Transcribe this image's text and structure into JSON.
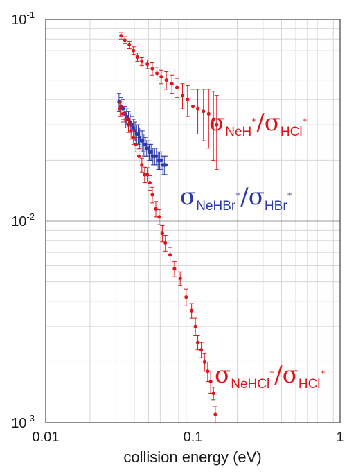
{
  "chart_data": {
    "type": "scatter",
    "xlabel": "collision energy (eV)",
    "x_scale": "log",
    "y_scale": "log",
    "xlim": [
      0.01,
      1
    ],
    "ylim": [
      0.001,
      0.1
    ],
    "grid": true,
    "x_ticks": [
      {
        "value": 0.01,
        "label": "0.01"
      },
      {
        "value": 0.1,
        "label": "0.1"
      },
      {
        "value": 1,
        "label": "1"
      }
    ],
    "y_ticks": [
      {
        "value": 0.1,
        "mant": "10",
        "exp": "-1"
      },
      {
        "value": 0.01,
        "mant": "10",
        "exp": "-2"
      },
      {
        "value": 0.001,
        "mant": "10",
        "exp": "-3"
      }
    ],
    "series": [
      {
        "color": "#e0141b",
        "label_parts": [
          "σ",
          "NeH",
          "+",
          "/σ",
          "HCl",
          "+"
        ],
        "x": [
          0.0325,
          0.0345,
          0.037,
          0.0395,
          0.042,
          0.045,
          0.049,
          0.053,
          0.057,
          0.061,
          0.066,
          0.072,
          0.078,
          0.085,
          0.092,
          0.1,
          0.108,
          0.118,
          0.128,
          0.138,
          0.145
        ],
        "y": [
          0.083,
          0.079,
          0.075,
          0.07,
          0.065,
          0.062,
          0.06,
          0.057,
          0.054,
          0.052,
          0.05,
          0.048,
          0.046,
          0.042,
          0.04,
          0.037,
          0.036,
          0.035,
          0.034,
          0.032,
          0.03
        ],
        "err": [
          0.003,
          0.003,
          0.003,
          0.003,
          0.003,
          0.003,
          0.003,
          0.004,
          0.004,
          0.004,
          0.005,
          0.005,
          0.005,
          0.006,
          0.007,
          0.008,
          0.009,
          0.01,
          0.011,
          0.012,
          0.012
        ]
      },
      {
        "color": "#2b3aa8",
        "label_parts": [
          "σ",
          "NeHBr",
          "+",
          "/σ",
          "HBr",
          "+"
        ],
        "x": [
          0.0315,
          0.0325,
          0.0335,
          0.0345,
          0.0355,
          0.0365,
          0.0375,
          0.0385,
          0.0395,
          0.0405,
          0.0415,
          0.0425,
          0.0435,
          0.0445,
          0.0455,
          0.0465,
          0.0475,
          0.0485,
          0.0495,
          0.0505,
          0.052,
          0.0535,
          0.055,
          0.0565,
          0.058,
          0.0595,
          0.061,
          0.0625,
          0.064,
          0.0655
        ],
        "y": [
          0.039,
          0.037,
          0.036,
          0.034,
          0.033,
          0.032,
          0.031,
          0.03,
          0.029,
          0.028,
          0.027,
          0.027,
          0.026,
          0.025,
          0.025,
          0.024,
          0.024,
          0.023,
          0.023,
          0.022,
          0.022,
          0.021,
          0.021,
          0.021,
          0.02,
          0.02,
          0.02,
          0.019,
          0.019,
          0.019
        ],
        "err": [
          0.004,
          0.004,
          0.004,
          0.003,
          0.003,
          0.003,
          0.003,
          0.003,
          0.003,
          0.003,
          0.003,
          0.003,
          0.003,
          0.003,
          0.003,
          0.003,
          0.002,
          0.002,
          0.002,
          0.002,
          0.002,
          0.002,
          0.002,
          0.002,
          0.002,
          0.002,
          0.002,
          0.002,
          0.002,
          0.002
        ]
      },
      {
        "color": "#e0141b",
        "label_parts": [
          "σ",
          "NeHCl",
          "+",
          "/σ",
          "HCl",
          "+"
        ],
        "x": [
          0.032,
          0.0335,
          0.035,
          0.0365,
          0.038,
          0.0395,
          0.041,
          0.043,
          0.045,
          0.047,
          0.049,
          0.051,
          0.053,
          0.056,
          0.059,
          0.062,
          0.065,
          0.07,
          0.075,
          0.082,
          0.09,
          0.098,
          0.104,
          0.108,
          0.114,
          0.12,
          0.126,
          0.132,
          0.138,
          0.142
        ],
        "y": [
          0.036,
          0.034,
          0.032,
          0.03,
          0.028,
          0.026,
          0.024,
          0.021,
          0.019,
          0.017,
          0.017,
          0.0155,
          0.0135,
          0.0115,
          0.0105,
          0.0087,
          0.0078,
          0.0068,
          0.0058,
          0.0052,
          0.0042,
          0.0036,
          0.003,
          0.0025,
          0.0023,
          0.002,
          0.0018,
          0.0016,
          0.0014,
          0.0011
        ],
        "err": [
          0.003,
          0.003,
          0.003,
          0.0025,
          0.0025,
          0.002,
          0.002,
          0.0018,
          0.0015,
          0.0015,
          0.0014,
          0.0013,
          0.0012,
          0.001,
          0.0009,
          0.0008,
          0.0007,
          0.0006,
          0.0005,
          0.0004,
          0.0004,
          0.0003,
          0.0003,
          0.0002,
          0.0002,
          0.0002,
          0.0002,
          0.0002,
          0.0001,
          0.0001
        ]
      }
    ]
  }
}
